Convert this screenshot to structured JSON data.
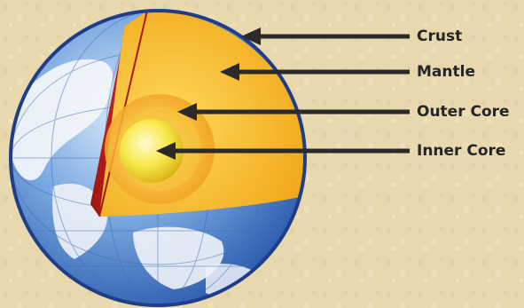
{
  "diagram": {
    "labels": {
      "crust": "Crust",
      "mantle": "Mantle",
      "outer_core": "Outer Core",
      "inner_core": "Inner Core"
    }
  },
  "colors": {
    "background": "#e8d8ad",
    "ocean": "#4f82c8",
    "land": "#f1f3f7",
    "globe_rim": "#1f3d88",
    "crust": "#c8281e",
    "mantle": "#f3b61c",
    "outer_core": "#f0a21a",
    "inner_core": "#f6e43c",
    "arrow": "#2a2a2a"
  }
}
